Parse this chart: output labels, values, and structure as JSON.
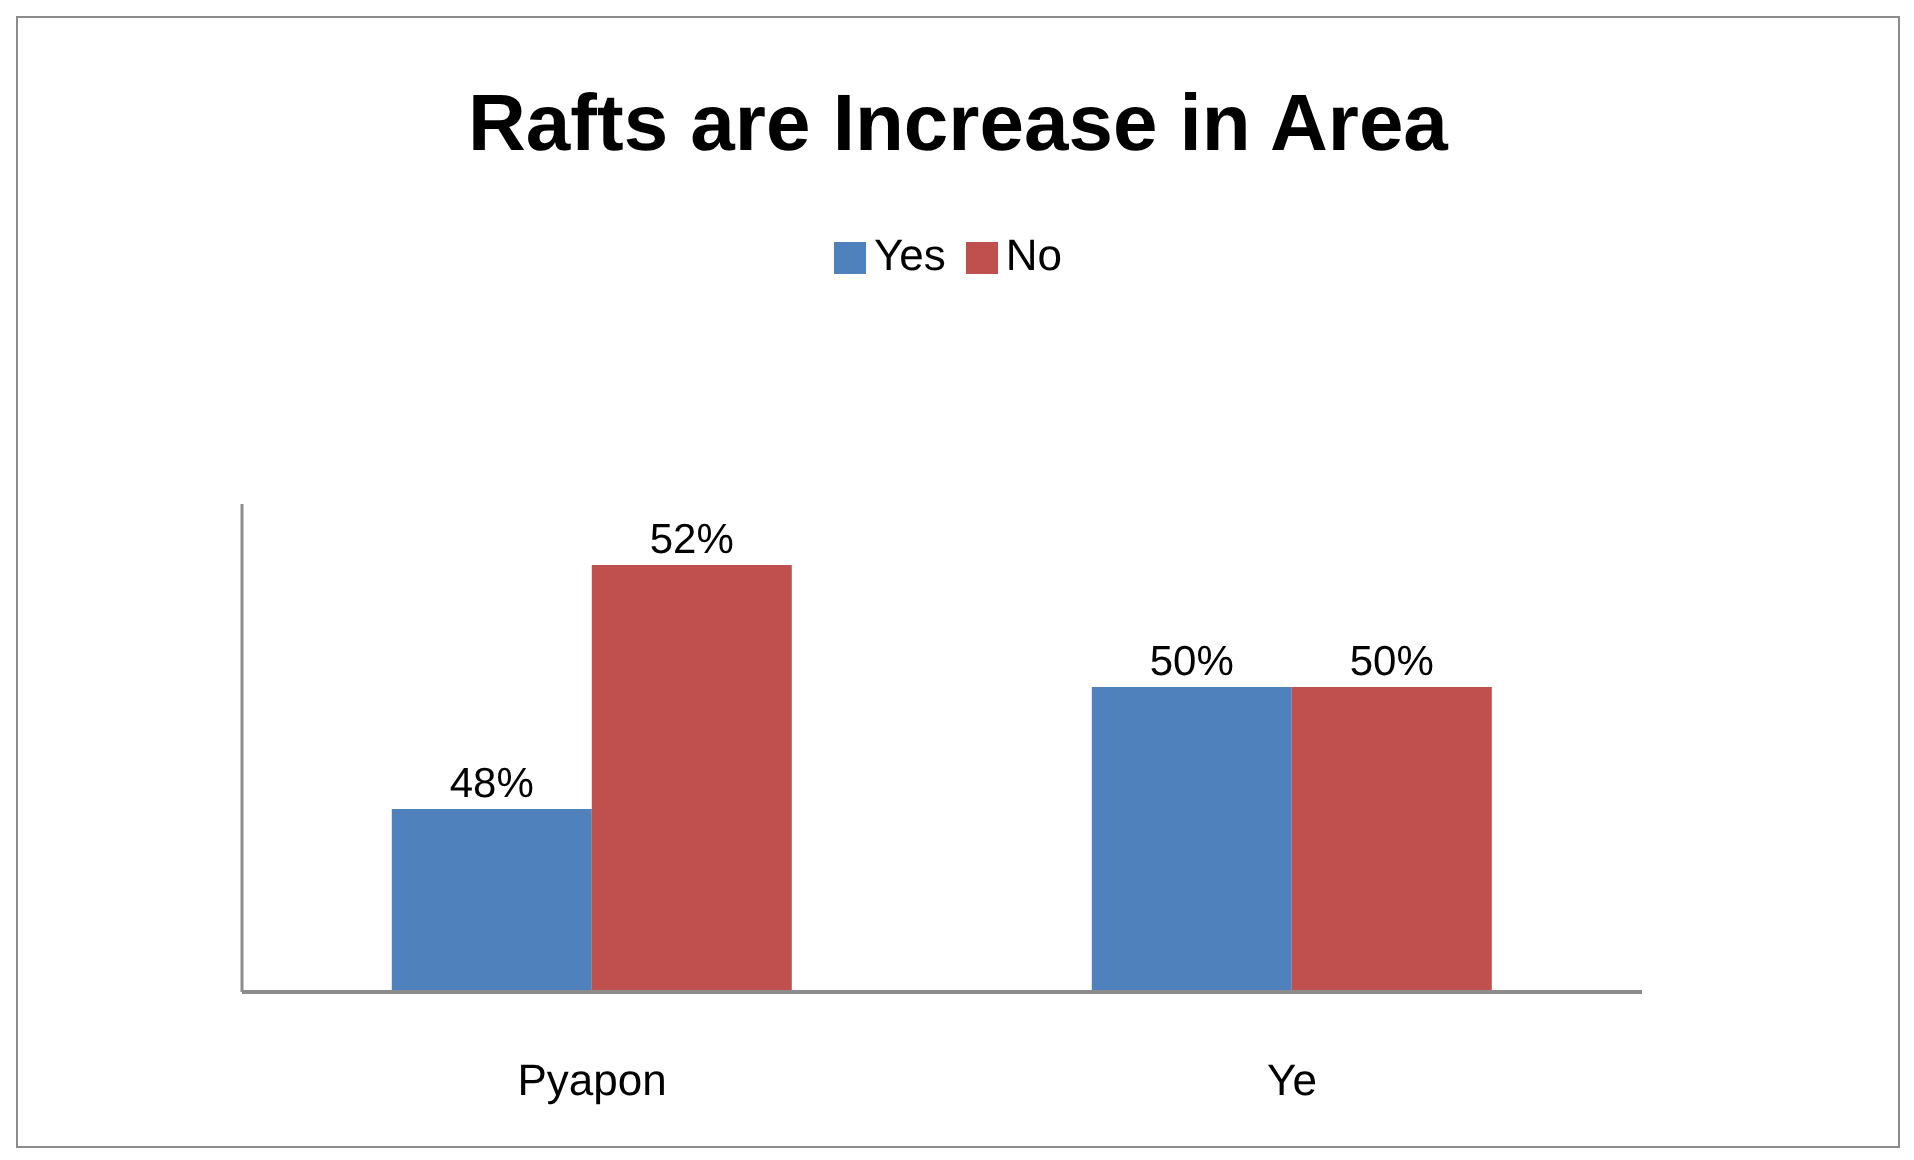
{
  "chart_data": {
    "type": "bar",
    "title": "Rafts are Increase in Area",
    "categories": [
      "Pyapon",
      "Ye"
    ],
    "series": [
      {
        "name": "Yes",
        "color": "#4f81bd",
        "values": [
          48,
          50
        ],
        "value_labels": [
          "48%",
          "50%"
        ]
      },
      {
        "name": "No",
        "color": "#c0504d",
        "values": [
          52,
          50
        ],
        "value_labels": [
          "52%",
          "50%"
        ]
      }
    ],
    "ylim": [
      45,
      53
    ],
    "tick_labels": "x",
    "legend": "top"
  }
}
